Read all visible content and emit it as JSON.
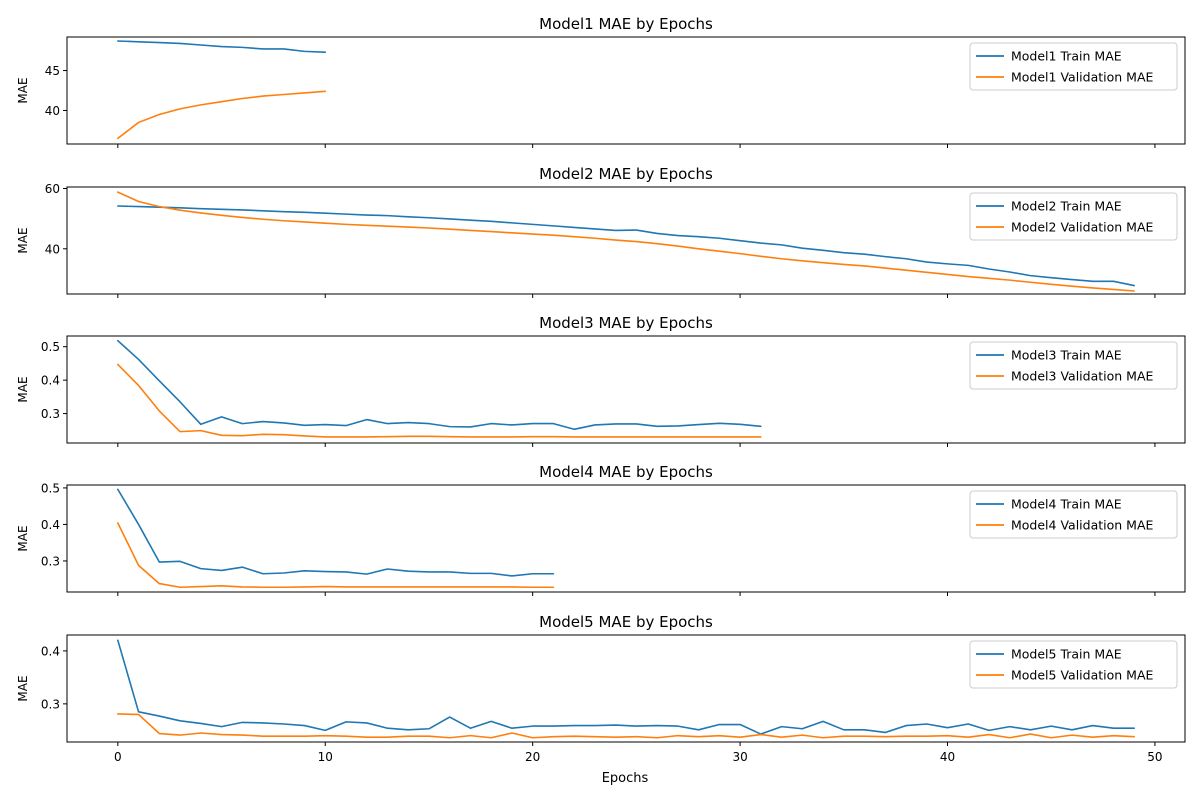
{
  "x_label": "Epochs",
  "x_ticks": [
    0,
    10,
    20,
    30,
    40,
    50
  ],
  "colors": {
    "train": "#1f77b4",
    "validation": "#ff7f0e"
  },
  "chart_data": [
    {
      "type": "line",
      "title": "Model1 MAE by Epochs",
      "ylabel": "MAE",
      "ylim": [
        35.8,
        49.2
      ],
      "yticks": [
        40,
        45
      ],
      "legend": "top-right",
      "series": [
        {
          "name": "Model1 Train MAE",
          "role": "train",
          "x": [
            0,
            1,
            2,
            3,
            4,
            5,
            6,
            7,
            8,
            9,
            10
          ],
          "values": [
            48.7,
            48.6,
            48.5,
            48.4,
            48.2,
            48.0,
            47.9,
            47.7,
            47.7,
            47.4,
            47.3
          ]
        },
        {
          "name": "Model1 Validation MAE",
          "role": "validation",
          "x": [
            0,
            1,
            2,
            3,
            4,
            5,
            6,
            7,
            8,
            9,
            10
          ],
          "values": [
            36.5,
            38.5,
            39.5,
            40.2,
            40.7,
            41.1,
            41.5,
            41.8,
            42.0,
            42.2,
            42.4
          ]
        }
      ]
    },
    {
      "type": "line",
      "title": "Model2 MAE by Epochs",
      "ylabel": "MAE",
      "ylim": [
        25.0,
        60.5
      ],
      "yticks": [
        40,
        60
      ],
      "legend": "top-right",
      "series": [
        {
          "name": "Model2 Train MAE",
          "role": "train",
          "x": [
            0,
            1,
            2,
            3,
            4,
            5,
            6,
            7,
            8,
            9,
            10,
            11,
            12,
            13,
            14,
            15,
            16,
            17,
            18,
            19,
            20,
            21,
            22,
            23,
            24,
            25,
            26,
            27,
            28,
            29,
            30,
            31,
            32,
            33,
            34,
            35,
            36,
            37,
            38,
            39,
            40,
            41,
            42,
            43,
            44,
            45,
            46,
            47,
            48,
            49
          ],
          "values": [
            54.2,
            54.0,
            53.8,
            53.6,
            53.3,
            53.1,
            52.9,
            52.6,
            52.3,
            52.1,
            51.8,
            51.5,
            51.2,
            51.0,
            50.6,
            50.3,
            49.9,
            49.5,
            49.1,
            48.6,
            48.1,
            47.6,
            47.1,
            46.6,
            46.1,
            46.2,
            45.1,
            44.4,
            44.0,
            43.5,
            42.7,
            41.9,
            41.3,
            40.2,
            39.5,
            38.7,
            38.2,
            37.4,
            36.7,
            35.6,
            35.0,
            34.5,
            33.3,
            32.3,
            31.1,
            30.4,
            29.8,
            29.2,
            29.2,
            27.8
          ]
        },
        {
          "name": "Model2 Validation MAE",
          "role": "validation",
          "x": [
            0,
            1,
            2,
            3,
            4,
            5,
            6,
            7,
            8,
            9,
            10,
            11,
            12,
            13,
            14,
            15,
            16,
            17,
            18,
            19,
            20,
            21,
            22,
            23,
            24,
            25,
            26,
            27,
            28,
            29,
            30,
            31,
            32,
            33,
            34,
            35,
            36,
            37,
            38,
            39,
            40,
            41,
            42,
            43,
            44,
            45,
            46,
            47,
            48,
            49
          ],
          "values": [
            58.8,
            55.7,
            54.0,
            52.8,
            51.9,
            51.1,
            50.4,
            49.8,
            49.3,
            48.9,
            48.5,
            48.1,
            47.8,
            47.5,
            47.2,
            46.9,
            46.5,
            46.1,
            45.7,
            45.3,
            44.9,
            44.5,
            44.0,
            43.5,
            42.9,
            42.4,
            41.7,
            40.9,
            40.0,
            39.2,
            38.4,
            37.5,
            36.7,
            36.0,
            35.4,
            34.8,
            34.3,
            33.6,
            32.9,
            32.2,
            31.5,
            30.8,
            30.2,
            29.6,
            28.9,
            28.2,
            27.6,
            27.0,
            26.5,
            26.0
          ]
        }
      ]
    },
    {
      "type": "line",
      "title": "Model3 MAE by Epochs",
      "ylabel": "MAE",
      "ylim": [
        0.212,
        0.532
      ],
      "yticks": [
        0.3,
        0.4,
        0.5
      ],
      "legend": "top-right",
      "series": [
        {
          "name": "Model3 Train MAE",
          "role": "train",
          "x": [
            0,
            1,
            2,
            3,
            4,
            5,
            6,
            7,
            8,
            9,
            10,
            11,
            12,
            13,
            14,
            15,
            16,
            17,
            18,
            19,
            20,
            21,
            22,
            23,
            24,
            25,
            26,
            27,
            28,
            29,
            30,
            31
          ],
          "values": [
            0.518,
            0.462,
            0.398,
            0.335,
            0.268,
            0.29,
            0.27,
            0.276,
            0.272,
            0.265,
            0.267,
            0.264,
            0.282,
            0.27,
            0.273,
            0.27,
            0.261,
            0.26,
            0.27,
            0.266,
            0.27,
            0.27,
            0.253,
            0.266,
            0.269,
            0.269,
            0.262,
            0.263,
            0.267,
            0.271,
            0.268,
            0.262
          ]
        },
        {
          "name": "Model3 Validation MAE",
          "role": "validation",
          "x": [
            0,
            1,
            2,
            3,
            4,
            5,
            6,
            7,
            8,
            9,
            10,
            11,
            12,
            13,
            14,
            15,
            16,
            17,
            18,
            19,
            20,
            21,
            22,
            23,
            24,
            25,
            26,
            27,
            28,
            29,
            30,
            31
          ],
          "values": [
            0.447,
            0.384,
            0.308,
            0.246,
            0.249,
            0.235,
            0.234,
            0.238,
            0.237,
            0.233,
            0.23,
            0.23,
            0.23,
            0.231,
            0.232,
            0.232,
            0.231,
            0.23,
            0.23,
            0.23,
            0.231,
            0.231,
            0.23,
            0.23,
            0.23,
            0.23,
            0.23,
            0.23,
            0.23,
            0.23,
            0.23,
            0.23
          ]
        }
      ]
    },
    {
      "type": "line",
      "title": "Model4 MAE by Epochs",
      "ylabel": "MAE",
      "ylim": [
        0.215,
        0.508
      ],
      "yticks": [
        0.3,
        0.4,
        0.5
      ],
      "legend": "top-right",
      "series": [
        {
          "name": "Model4 Train MAE",
          "role": "train",
          "x": [
            0,
            1,
            2,
            3,
            4,
            5,
            6,
            7,
            8,
            9,
            10,
            11,
            12,
            13,
            14,
            15,
            16,
            17,
            18,
            19,
            20,
            21
          ],
          "values": [
            0.496,
            0.4,
            0.297,
            0.299,
            0.279,
            0.274,
            0.283,
            0.265,
            0.267,
            0.273,
            0.271,
            0.27,
            0.264,
            0.278,
            0.272,
            0.27,
            0.27,
            0.266,
            0.266,
            0.259,
            0.265,
            0.265
          ]
        },
        {
          "name": "Model4 Validation MAE",
          "role": "validation",
          "x": [
            0,
            1,
            2,
            3,
            4,
            5,
            6,
            7,
            8,
            9,
            10,
            11,
            12,
            13,
            14,
            15,
            16,
            17,
            18,
            19,
            20,
            21
          ],
          "values": [
            0.404,
            0.288,
            0.238,
            0.228,
            0.23,
            0.232,
            0.229,
            0.228,
            0.228,
            0.229,
            0.23,
            0.229,
            0.229,
            0.229,
            0.229,
            0.229,
            0.229,
            0.229,
            0.229,
            0.229,
            0.228,
            0.228
          ]
        }
      ]
    },
    {
      "type": "line",
      "title": "Model5 MAE by Epochs",
      "ylabel": "MAE",
      "ylim": [
        0.228,
        0.43
      ],
      "yticks": [
        0.3,
        0.4
      ],
      "legend": "top-right",
      "series": [
        {
          "name": "Model5 Train MAE",
          "role": "train",
          "x": [
            0,
            1,
            2,
            3,
            4,
            5,
            6,
            7,
            8,
            9,
            10,
            11,
            12,
            13,
            14,
            15,
            16,
            17,
            18,
            19,
            20,
            21,
            22,
            23,
            24,
            25,
            26,
            27,
            28,
            29,
            30,
            31,
            32,
            33,
            34,
            35,
            36,
            37,
            38,
            39,
            40,
            41,
            42,
            43,
            44,
            45,
            46,
            47,
            48,
            49
          ],
          "values": [
            0.42,
            0.285,
            0.277,
            0.268,
            0.263,
            0.257,
            0.265,
            0.264,
            0.262,
            0.259,
            0.25,
            0.266,
            0.264,
            0.254,
            0.251,
            0.253,
            0.275,
            0.254,
            0.267,
            0.254,
            0.258,
            0.258,
            0.259,
            0.259,
            0.26,
            0.258,
            0.259,
            0.258,
            0.251,
            0.261,
            0.261,
            0.243,
            0.257,
            0.253,
            0.267,
            0.251,
            0.251,
            0.246,
            0.259,
            0.262,
            0.255,
            0.262,
            0.25,
            0.257,
            0.251,
            0.258,
            0.251,
            0.259,
            0.254,
            0.254
          ]
        },
        {
          "name": "Model5 Validation MAE",
          "role": "validation",
          "x": [
            0,
            1,
            2,
            3,
            4,
            5,
            6,
            7,
            8,
            9,
            10,
            11,
            12,
            13,
            14,
            15,
            16,
            17,
            18,
            19,
            20,
            21,
            22,
            23,
            24,
            25,
            26,
            27,
            28,
            29,
            30,
            31,
            32,
            33,
            34,
            35,
            36,
            37,
            38,
            39,
            40,
            41,
            42,
            43,
            44,
            45,
            46,
            47,
            48,
            49
          ],
          "values": [
            0.281,
            0.28,
            0.244,
            0.241,
            0.245,
            0.242,
            0.241,
            0.239,
            0.239,
            0.239,
            0.24,
            0.239,
            0.237,
            0.237,
            0.239,
            0.239,
            0.236,
            0.24,
            0.236,
            0.245,
            0.236,
            0.238,
            0.239,
            0.238,
            0.237,
            0.238,
            0.236,
            0.24,
            0.238,
            0.24,
            0.237,
            0.242,
            0.237,
            0.241,
            0.236,
            0.239,
            0.239,
            0.238,
            0.239,
            0.239,
            0.24,
            0.237,
            0.242,
            0.236,
            0.243,
            0.236,
            0.241,
            0.237,
            0.24,
            0.238
          ]
        }
      ]
    }
  ]
}
